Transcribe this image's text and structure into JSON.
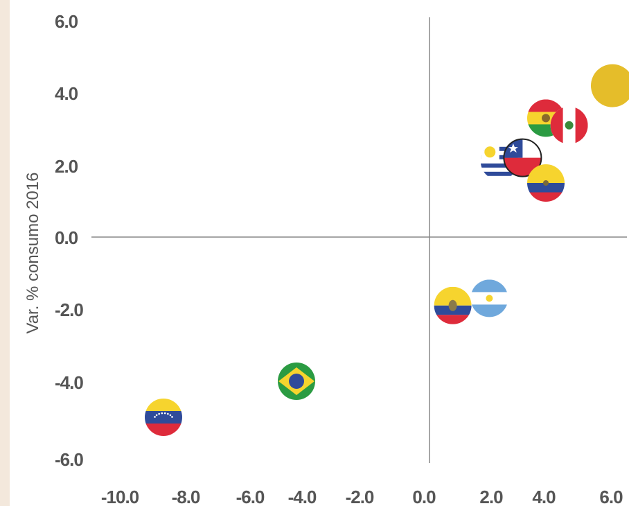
{
  "chart_data": {
    "type": "scatter",
    "title": "",
    "xlabel": "",
    "ylabel": "Var. % consumo 2016",
    "xlim": [
      -10,
      6
    ],
    "ylim": [
      -6,
      6
    ],
    "x_ticks": [
      "-10.0",
      "-8.0",
      "-6.0",
      "-4.0",
      "-2.0",
      "0.0",
      "2.0",
      "4.0",
      "6.0"
    ],
    "y_ticks": [
      "6.0",
      "4.0",
      "2.0",
      "0.0",
      "-2.0",
      "-4.0",
      "-6.0"
    ],
    "grid": false,
    "points": [
      {
        "flag": "bolivia-flag",
        "x": 3.5,
        "y": 3.3
      },
      {
        "flag": "peru-flag",
        "x": 4.2,
        "y": 3.1
      },
      {
        "flag": "uruguay-flag",
        "x": 2.1,
        "y": 2.1
      },
      {
        "flag": "chile-flag",
        "x": 2.8,
        "y": 2.2
      },
      {
        "flag": "colombia-flag",
        "x": 3.5,
        "y": 1.5
      },
      {
        "flag": "ecuador-flag",
        "x": 0.7,
        "y": -1.9
      },
      {
        "flag": "argentina-flag",
        "x": 1.8,
        "y": -1.7
      },
      {
        "flag": "brazil-flag",
        "x": -4.0,
        "y": -4.0
      },
      {
        "flag": "venezuela-flag",
        "x": -8.0,
        "y": -5.0
      },
      {
        "flag": "gold-circle",
        "x": 5.5,
        "y": 4.2
      }
    ],
    "colors": {
      "axis": "#888888",
      "text": "#555555",
      "gold": "#e5bd2a",
      "red": "#de2b3b",
      "yellow": "#f6d42e",
      "blue": "#2f4b9a",
      "green": "#2b9b42",
      "sky": "#6fa8dc",
      "white": "#ffffff"
    }
  }
}
